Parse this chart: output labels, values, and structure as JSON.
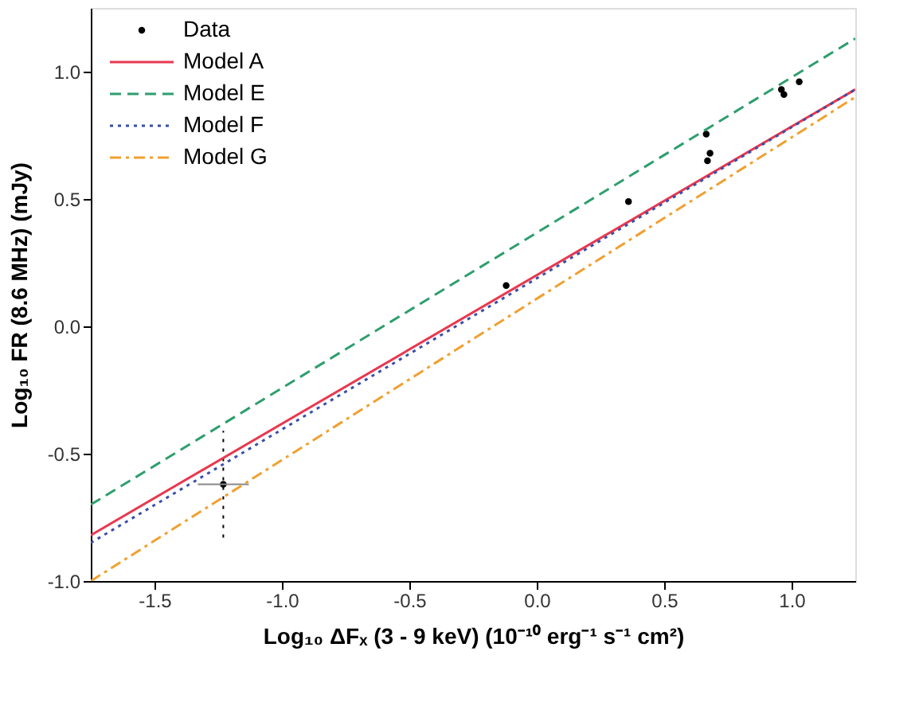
{
  "chart_data": {
    "type": "line",
    "xlabel": "Log₁₀ ΔFₓ (3 - 9 keV) (10⁻¹⁰ erg⁻¹ s⁻¹ cm²)",
    "ylabel": "Log₁₀ FR (8.6 MHz) (mJy)",
    "xlim": [
      -1.75,
      1.25
    ],
    "ylim": [
      -1.0,
      1.25
    ],
    "xticks": [
      {
        "value": -1.5,
        "label": "-1.5"
      },
      {
        "value": -1.0,
        "label": "-1.0"
      },
      {
        "value": -0.5,
        "label": "-0.5"
      },
      {
        "value": 0.0,
        "label": "0.0"
      },
      {
        "value": 0.5,
        "label": "0.5"
      },
      {
        "value": 1.0,
        "label": "1.0"
      }
    ],
    "yticks": [
      {
        "value": -1.0,
        "label": "-1.0"
      },
      {
        "value": -0.5,
        "label": "-0.5"
      },
      {
        "value": 0.0,
        "label": "0.0"
      },
      {
        "value": 0.5,
        "label": "0.5"
      },
      {
        "value": 1.0,
        "label": "1.0"
      }
    ],
    "grid": false,
    "legend": "top left",
    "series": [
      {
        "name": "Data",
        "type": "scatter",
        "color": "#000000",
        "marker": "circle",
        "x": [
          -1.23,
          -0.12,
          0.36,
          0.665,
          0.68,
          0.67,
          0.96,
          0.97,
          1.03
        ],
        "values": [
          -0.62,
          0.16,
          0.49,
          0.755,
          0.68,
          0.65,
          0.93,
          0.91,
          0.96
        ],
        "errors": [
          [
            -0.83,
            -0.41
          ],
          null,
          null,
          null,
          null,
          null,
          null,
          null,
          null
        ],
        "xerrors": [
          [
            -1.33,
            -1.13
          ],
          null,
          null,
          null,
          null,
          null,
          null,
          null,
          null
        ]
      },
      {
        "name": "Model A",
        "type": "line",
        "color": "#e8384f",
        "line_style": "solid",
        "x": [
          -1.75,
          1.25
        ],
        "values": [
          -0.82,
          0.93
        ]
      },
      {
        "name": "Model E",
        "type": "line",
        "color": "#2e9e6e",
        "line_style": "dashed",
        "x": [
          -1.75,
          1.25
        ],
        "values": [
          -0.7,
          1.13
        ]
      },
      {
        "name": "Model F",
        "type": "line",
        "color": "#3a4fa8",
        "line_style": "dotted",
        "x": [
          -1.75,
          1.25
        ],
        "values": [
          -0.85,
          0.93
        ]
      },
      {
        "name": "Model G",
        "type": "line",
        "color": "#f0a030",
        "line_style": "dashdot",
        "x": [
          -1.75,
          1.25
        ],
        "values": [
          -1.0,
          0.9
        ]
      }
    ]
  }
}
